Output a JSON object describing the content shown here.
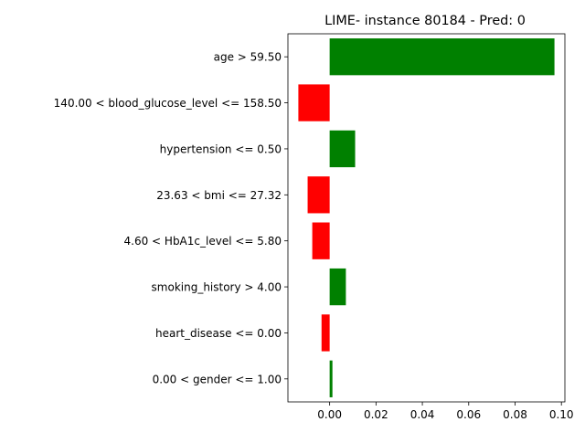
{
  "chart_data": {
    "type": "bar",
    "orientation": "horizontal",
    "title": "LIME- instance 80184 - Pred: 0",
    "xlabel": "",
    "ylabel": "",
    "categories": [
      "age > 59.50",
      "140.00 < blood_glucose_level <= 158.50",
      "hypertension <= 0.50",
      "23.63 < bmi <= 27.32",
      "4.60 < HbA1c_level <= 5.80",
      "smoking_history > 4.00",
      "heart_disease <= 0.00",
      "0.00 < gender <= 1.00"
    ],
    "values": [
      0.097,
      -0.0135,
      0.011,
      -0.0095,
      -0.0075,
      0.007,
      -0.0035,
      0.0012
    ],
    "xlim": [
      -0.018,
      0.1015
    ],
    "xticks": [
      0.0,
      0.02,
      0.04,
      0.06,
      0.08,
      0.1
    ],
    "xtick_labels": [
      "0.00",
      "0.02",
      "0.04",
      "0.06",
      "0.08",
      "0.10"
    ],
    "grid": false,
    "legend": "none",
    "colors": {
      "positive": "#008000",
      "negative": "#ff0000"
    }
  }
}
